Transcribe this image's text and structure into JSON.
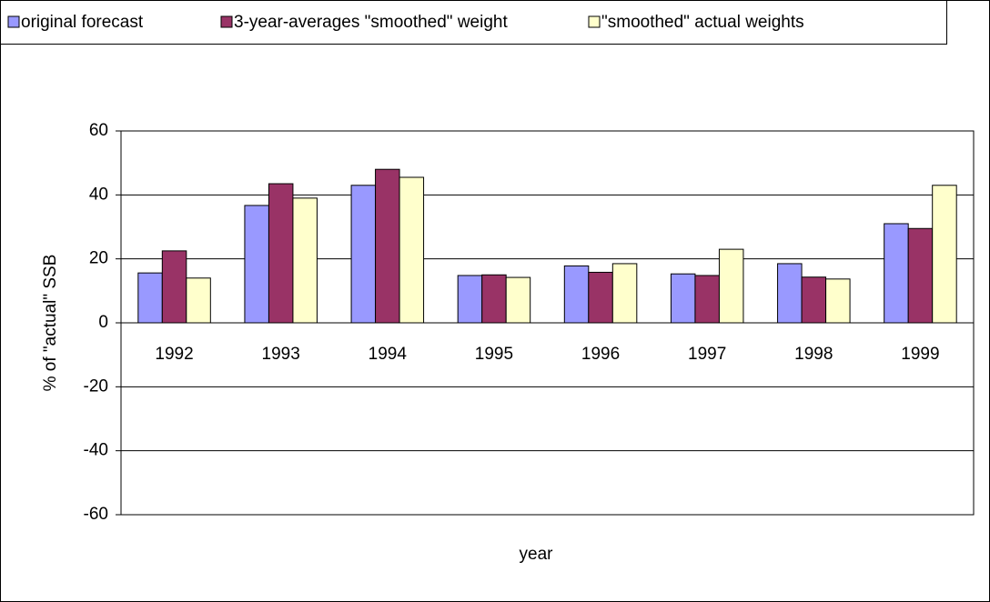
{
  "chart_data": {
    "type": "bar",
    "xlabel": "year",
    "ylabel": "% of \"actual\" SSB",
    "categories": [
      "1992",
      "1993",
      "1994",
      "1995",
      "1996",
      "1997",
      "1998",
      "1999"
    ],
    "series": [
      {
        "name": "original forecast",
        "color": "#9999ff",
        "values": [
          15.6,
          36.7,
          43,
          14.8,
          17.8,
          15.3,
          18.5,
          31
        ]
      },
      {
        "name": "3-year-averages \"smoothed\" weight",
        "color": "#993366",
        "values": [
          22.5,
          43.5,
          48,
          15,
          15.8,
          14.8,
          14.3,
          29.5
        ]
      },
      {
        "name": "\"smoothed\" actual weights",
        "color": "#ffffcc",
        "values": [
          14,
          39,
          45.5,
          14.2,
          18.5,
          23,
          13.7,
          43
        ]
      }
    ],
    "ylim": [
      -60,
      60
    ],
    "yticks": [
      -60,
      -40,
      -20,
      0,
      20,
      40,
      60
    ],
    "grid": true
  }
}
